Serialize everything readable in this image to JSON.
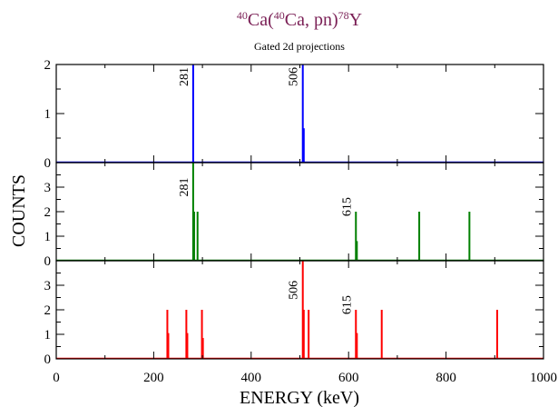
{
  "chart_data": {
    "type": "bar",
    "title": {
      "parts": [
        {
          "text": "40",
          "sup": true
        },
        {
          "text": "Ca(",
          "sup": false
        },
        {
          "text": "40",
          "sup": true
        },
        {
          "text": "Ca, pn)",
          "sup": false
        },
        {
          "text": "78",
          "sup": true
        },
        {
          "text": "Y",
          "sup": false
        }
      ],
      "color": "#7a1f55"
    },
    "subtitle": "Gated 2d projections",
    "xlabel": "ENERGY (keV)",
    "ylabel": "COUNTS",
    "xlim": [
      0,
      1000
    ],
    "xticks": [
      0,
      200,
      400,
      600,
      800,
      1000
    ],
    "x_minor_step": 100,
    "grid": false,
    "legend": "none",
    "panels": [
      {
        "color": "#0000ff",
        "ylim": [
          0,
          2
        ],
        "yticks": [
          0,
          1,
          2
        ],
        "peaks": [
          {
            "x": 281,
            "y": 2
          },
          {
            "x": 506,
            "y": 2
          },
          {
            "x": 508,
            "y": 0.7
          }
        ],
        "labels": [
          {
            "text": "281",
            "x": 281,
            "y": 1.75
          },
          {
            "text": "506",
            "x": 506,
            "y": 1.75
          }
        ]
      },
      {
        "color": "#008000",
        "ylim": [
          0,
          4
        ],
        "yticks": [
          0,
          1,
          2,
          3
        ],
        "peaks": [
          {
            "x": 281,
            "y": 4
          },
          {
            "x": 283,
            "y": 2
          },
          {
            "x": 290,
            "y": 2
          },
          {
            "x": 615,
            "y": 2
          },
          {
            "x": 617,
            "y": 0.8
          },
          {
            "x": 745,
            "y": 2
          },
          {
            "x": 848,
            "y": 2
          }
        ],
        "labels": [
          {
            "text": "281",
            "x": 281,
            "y": 3.0
          },
          {
            "text": "615",
            "x": 615,
            "y": 2.2
          }
        ]
      },
      {
        "color": "#ff0000",
        "ylim": [
          0,
          4
        ],
        "yticks": [
          0,
          1,
          2,
          3
        ],
        "peaks": [
          {
            "x": 228,
            "y": 2
          },
          {
            "x": 230,
            "y": 1.05
          },
          {
            "x": 267,
            "y": 2
          },
          {
            "x": 269,
            "y": 1.05
          },
          {
            "x": 299,
            "y": 2
          },
          {
            "x": 301,
            "y": 0.85
          },
          {
            "x": 506,
            "y": 4
          },
          {
            "x": 508,
            "y": 2
          },
          {
            "x": 518,
            "y": 2
          },
          {
            "x": 615,
            "y": 2
          },
          {
            "x": 617,
            "y": 1.05
          },
          {
            "x": 668,
            "y": 2
          },
          {
            "x": 905,
            "y": 2
          }
        ],
        "labels": [
          {
            "text": "506",
            "x": 506,
            "y": 2.8
          },
          {
            "text": "615",
            "x": 615,
            "y": 2.2
          }
        ]
      }
    ]
  }
}
